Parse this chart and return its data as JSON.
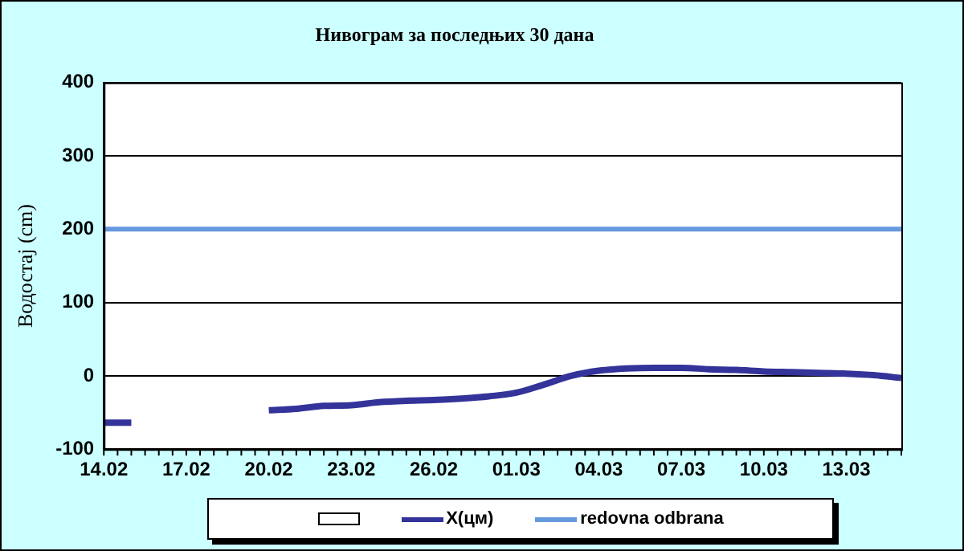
{
  "chart_data": {
    "type": "line",
    "title": "Нивограм за последњих 30 дана",
    "ylabel": "Водостај (cm)",
    "categories": [
      "14.02",
      null,
      null,
      "17.02",
      null,
      null,
      "20.02",
      null,
      null,
      "23.02",
      null,
      null,
      "26.02",
      null,
      null,
      "01.03",
      null,
      null,
      "04.03",
      null,
      null,
      "07.03",
      null,
      null,
      "10.03",
      null,
      null,
      "13.03",
      null,
      null
    ],
    "series": [
      {
        "name": "X(цм)",
        "color": "#333399",
        "values": [
          -64,
          -64,
          null,
          null,
          null,
          null,
          -47,
          -45,
          -41,
          -40,
          -36,
          -34,
          -33,
          -31,
          -28,
          -23,
          -12,
          0,
          7,
          10,
          11,
          11,
          9,
          8,
          6,
          5,
          4,
          3,
          1,
          -3
        ]
      },
      {
        "name": "redovna odbrana",
        "color": "#6699dd",
        "values": [
          200,
          200,
          200,
          200,
          200,
          200,
          200,
          200,
          200,
          200,
          200,
          200,
          200,
          200,
          200,
          200,
          200,
          200,
          200,
          200,
          200,
          200,
          200,
          200,
          200,
          200,
          200,
          200,
          200,
          200
        ]
      }
    ],
    "ylim": [
      -100,
      400
    ],
    "yticks": [
      -100,
      0,
      100,
      200,
      300,
      400
    ],
    "grid": "y",
    "legend": "bottom",
    "marker": "none"
  }
}
